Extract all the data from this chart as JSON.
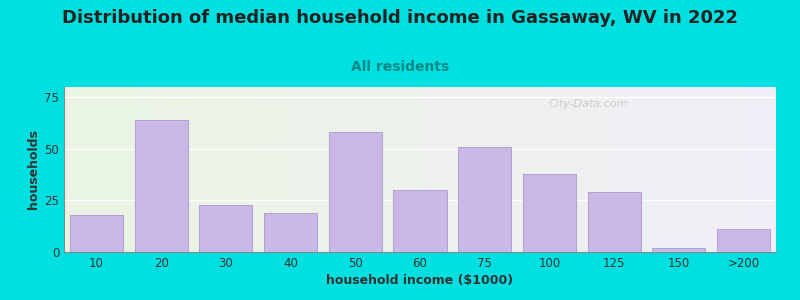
{
  "title": "Distribution of median household income in Gassaway, WV in 2022",
  "subtitle": "All residents",
  "xlabel": "household income ($1000)",
  "ylabel": "households",
  "bar_labels": [
    "10",
    "20",
    "30",
    "40",
    "50",
    "60",
    "75",
    "100",
    "125",
    "150",
    ">200"
  ],
  "bar_heights": [
    18,
    64,
    23,
    19,
    58,
    30,
    51,
    38,
    29,
    2,
    11
  ],
  "bar_color": "#c9b8e8",
  "bar_edgecolor": "#b0a0d0",
  "background_outer": "#00e0e0",
  "background_plot_left": "#eaf5e2",
  "background_plot_right": "#f2eef8",
  "ylim": [
    0,
    80
  ],
  "yticks": [
    0,
    25,
    50,
    75
  ],
  "title_fontsize": 13,
  "subtitle_fontsize": 10,
  "axis_label_fontsize": 9,
  "watermark_text": "City-Data.com",
  "watermark_color": "#c0c0c0"
}
